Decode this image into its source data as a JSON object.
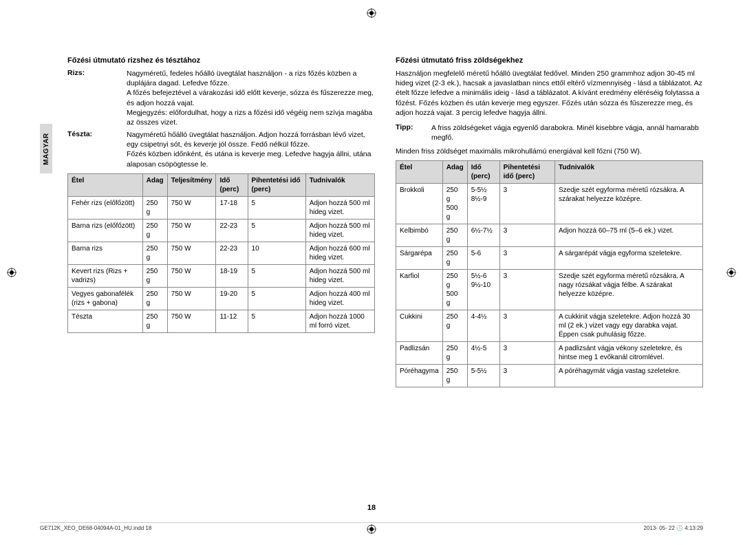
{
  "sideTab": "MAGYAR",
  "pageNumber": "18",
  "footerLeft": "GE712K_XEO_DE68-04094A-01_HU.indd   18",
  "footerRight": "2013- 05- 22  🕓 4:13:29",
  "left": {
    "heading": "Főzési útmutató rizshez és tésztához",
    "defs": [
      {
        "label": "Rizs:",
        "body": "Nagyméretű, fedeles hőálló üvegtálat használjon - a rizs főzés közben a duplájára dagad. Lefedve főzze.\nA főzés befejeztével a várakozási idő előtt keverje, sózza és fűszerezze meg, és adjon hozzá vajat.\nMegjegyzés: előfordulhat, hogy a rizs a főzési idő végéig nem szívja magába az összes vizet."
      },
      {
        "label": "Tészta:",
        "body": "Nagyméretű hőálló üvegtálat használjon. Adjon hozzá forrásban lévő vizet, egy csipetnyi sót, és keverje jól össze. Fedő nélkül főzze.\nFőzés közben időnként, és utána is keverje meg. Lefedve hagyja állni, utána alaposan csöpögtesse le."
      }
    ],
    "table": {
      "headers": [
        "Étel",
        "Adag",
        "Teljesítmény",
        "Idő (perc)",
        "Pihentetési idő (perc)",
        "Tudnivalók"
      ],
      "rows": [
        [
          "Fehér rizs (előfőzött)",
          "250 g",
          "750 W",
          "17-18",
          "5",
          "Adjon hozzá 500 ml hideg vizet."
        ],
        [
          "Barna rizs (előfőzött)",
          "250 g",
          "750 W",
          "22-23",
          "5",
          "Adjon hozzá 500 ml hideg vizet."
        ],
        [
          "Barna rizs",
          "250 g",
          "750 W",
          "22-23",
          "10",
          "Adjon hozzá 600 ml hideg vizet."
        ],
        [
          "Kevert rizs (Rizs + vadrizs)",
          "250 g",
          "750 W",
          "18-19",
          "5",
          "Adjon hozzá 500 ml hideg vizet."
        ],
        [
          "Vegyes gabonafélék (rizs + gabona)",
          "250 g",
          "750 W",
          "19-20",
          "5",
          "Adjon hozzá 400 ml hideg vizet."
        ],
        [
          "Tészta",
          "250 g",
          "750 W",
          "11-12",
          "5",
          "Adjon hozzá 1000 ml forró vizet."
        ]
      ]
    }
  },
  "right": {
    "heading": "Főzési útmutató friss zöldségekhez",
    "intro": "Használjon megfelelő méretű hőálló üvegtálat fedővel. Minden 250 grammhoz adjon 30-45 ml hideg vizet (2-3 ek.), hacsak a javaslatban nincs ettől eltérő vízmennyiség - lásd a táblázatot. Az ételt főzze lefedve a minimális ideig - lásd a táblázatot. A kívánt eredmény eléréséig folytassa a főzést. Főzés közben és után keverje meg egyszer. Főzés után sózza és fűszerezze meg, és adjon hozzá vajat. 3 percig lefedve hagyja állni.",
    "tip": {
      "label": "Tipp:",
      "body": "A friss zöldségeket vágja egyenlő darabokra. Minél kisebbre vágja, annál hamarabb megfő."
    },
    "note": "Minden friss zöldséget maximális mikrohullámú energiával kell főzni (750 W).",
    "table": {
      "headers": [
        "Étel",
        "Adag",
        "Idő (perc)",
        "Pihentetési idő (perc)",
        "Tudnivalók"
      ],
      "rows": [
        [
          "Brokkoli",
          "250 g\n500 g",
          "5-5½\n8½-9",
          "3",
          "Szedje szét egyforma méretű rózsákra. A szárakat helyezze középre."
        ],
        [
          "Kelbimbó",
          "250 g",
          "6½-7½",
          "3",
          "Adjon hozzá 60–75 ml (5–6 ek.) vizet."
        ],
        [
          "Sárgarépa",
          "250 g",
          "5-6",
          "3",
          "A sárgarépát vágja egyforma szeletekre."
        ],
        [
          "Karfiol",
          "250 g\n500 g",
          "5½-6\n9½-10",
          "3",
          "Szedje szét egyforma méretű rózsákra. A nagy rózsákat vágja félbe. A szárakat helyezze középre."
        ],
        [
          "Cukkini",
          "250 g",
          "4-4½",
          "3",
          "A cukkinit vágja szeletekre. Adjon hozzá 30 ml (2 ek.) vizet vagy egy darabka vajat. Éppen csak puhulásig főzze."
        ],
        [
          "Padlizsán",
          "250 g",
          "4½-5",
          "3",
          "A padlizsánt vágja vékony szeletekre, és hintse meg 1 evőkanál citromlével."
        ],
        [
          "Póréhagyma",
          "250 g",
          "5-5½",
          "3",
          "A póréhagymát vágja vastag szeletekre."
        ]
      ]
    }
  }
}
